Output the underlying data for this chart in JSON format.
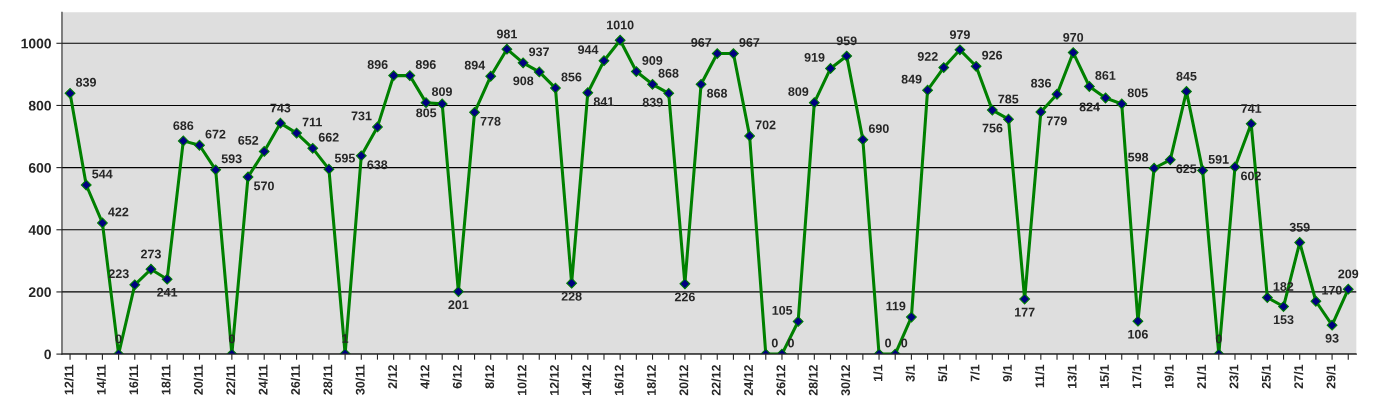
{
  "chart_data": {
    "type": "line",
    "categories": [
      "12/11",
      null,
      "14/11",
      null,
      "16/11",
      null,
      "18/11",
      null,
      "20/11",
      null,
      "22/11",
      null,
      "24/11",
      null,
      "26/11",
      null,
      "28/11",
      null,
      "30/11",
      null,
      "2/12",
      null,
      "4/12",
      null,
      "6/12",
      null,
      "8/12",
      null,
      "10/12",
      null,
      "12/12",
      null,
      "14/12",
      null,
      "16/12",
      null,
      "18/12",
      null,
      "20/12",
      null,
      "22/12",
      null,
      "24/12",
      null,
      "26/12",
      null,
      "28/12",
      null,
      "30/12",
      null,
      "1/1",
      null,
      "3/1",
      null,
      "5/1",
      null,
      "7/1",
      null,
      "9/1",
      null,
      "11/1",
      null,
      "13/1",
      null,
      "15/1",
      null,
      "17/1",
      null,
      "19/1",
      null,
      "21/1",
      null,
      "23/1",
      null,
      "25/1",
      null,
      "27/1",
      null,
      "29/1",
      null
    ],
    "series": [
      {
        "color": "#008000",
        "values": [
          839,
          544,
          422,
          0,
          223,
          273,
          241,
          686,
          672,
          593,
          0,
          570,
          652,
          743,
          711,
          662,
          595,
          1,
          638,
          731,
          896,
          896,
          809,
          805,
          201,
          778,
          894,
          981,
          937,
          908,
          856,
          228,
          841,
          944,
          1010,
          909,
          868,
          839,
          226,
          868,
          967,
          967,
          702,
          0,
          0,
          105,
          809,
          919,
          959,
          690,
          0,
          0,
          119,
          849,
          922,
          979,
          926,
          785,
          756,
          177,
          779,
          836,
          970,
          861,
          824,
          805,
          106,
          598,
          625,
          845,
          591,
          0,
          602,
          741,
          182,
          153,
          359,
          170,
          93,
          209
        ]
      }
    ],
    "ylim": [
      0,
      1100
    ],
    "yticks": [
      0,
      200,
      400,
      600,
      800,
      1000
    ],
    "grid": "y",
    "marker": "diamond",
    "line_style": "solid",
    "data_labels": true,
    "legend": false
  }
}
